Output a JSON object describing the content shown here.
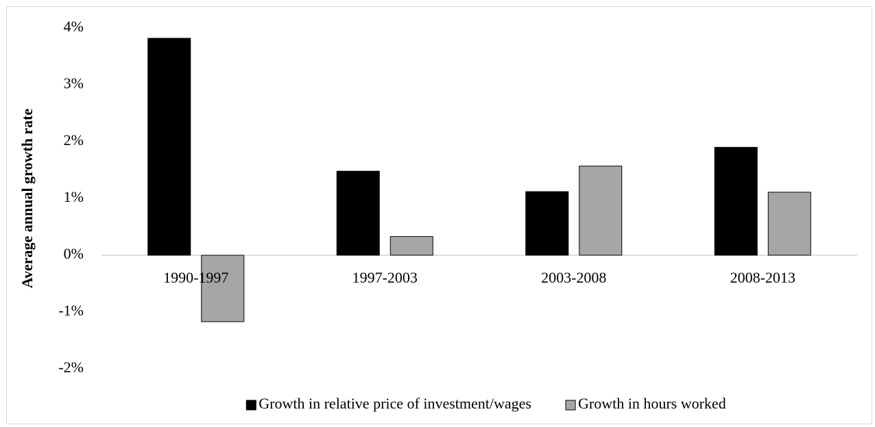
{
  "chart_data": {
    "type": "bar",
    "y_label": "Average annual growth rate",
    "categories": [
      "1990-1997",
      "1997-2003",
      "2003-2008",
      "2008-2013"
    ],
    "series": [
      {
        "name": "Growth in relative price of investment/wages",
        "color": "#000000",
        "values": [
          3.82,
          1.48,
          1.12,
          1.9
        ]
      },
      {
        "name": "Growth in hours worked",
        "color": "#a6a6a6",
        "values": [
          -1.17,
          0.33,
          1.57,
          1.11
        ]
      }
    ],
    "ylim": [
      -2,
      4
    ],
    "yticks": [
      {
        "value": -2,
        "label": "-2%"
      },
      {
        "value": -1,
        "label": "-1%"
      },
      {
        "value": 0,
        "label": "0%"
      },
      {
        "value": 1,
        "label": "1%"
      },
      {
        "value": 2,
        "label": "2%"
      },
      {
        "value": 3,
        "label": "3%"
      },
      {
        "value": 4,
        "label": "4%"
      }
    ],
    "grid": false,
    "legend": "bottom"
  }
}
